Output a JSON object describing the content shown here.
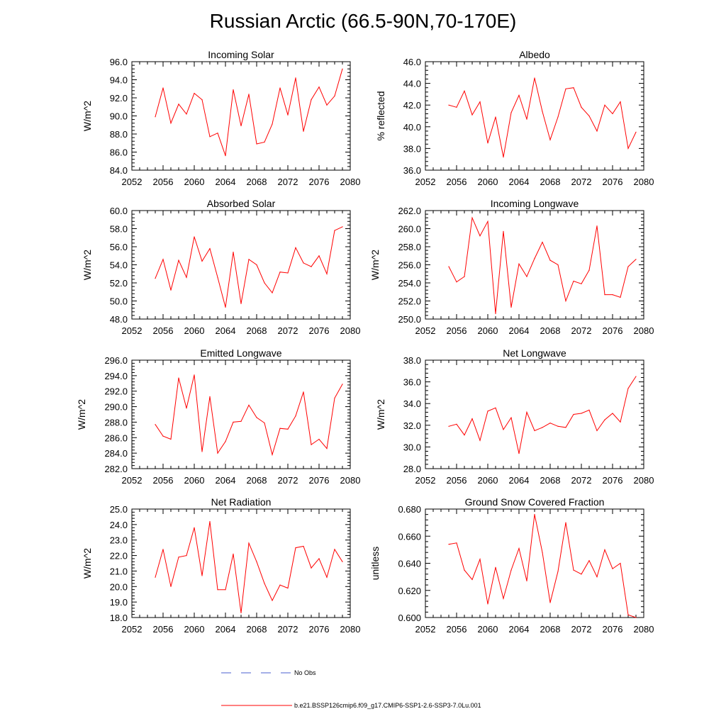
{
  "title": "Russian Arctic (66.5-90N,70-170E)",
  "legend": {
    "obs_label": "No Obs",
    "obs_color": "#4a5fcf",
    "model_label": "b.e21.BSSP126cmip6.f09_g17.CMIP6-SSP1-2.6-SSP3-7.0Lu.001",
    "model_color": "#ff0000"
  },
  "chart_data": [
    {
      "type": "line",
      "title": "Incoming Solar",
      "ylabel": "W/m^2",
      "xlim": [
        2052,
        2080
      ],
      "xticks": [
        "2052",
        "2056",
        "2060",
        "2064",
        "2068",
        "2072",
        "2076",
        "2080"
      ],
      "ylim": [
        84.0,
        96.0
      ],
      "yticks": [
        "84.0",
        "86.0",
        "88.0",
        "90.0",
        "92.0",
        "94.0",
        "96.0"
      ],
      "x": [
        2055,
        2056,
        2057,
        2058,
        2059,
        2060,
        2061,
        2062,
        2063,
        2064,
        2065,
        2066,
        2067,
        2068,
        2069,
        2070,
        2071,
        2072,
        2073,
        2074,
        2075,
        2076,
        2077,
        2078,
        2079
      ],
      "series": [
        {
          "values": [
            89.9,
            93.1,
            89.2,
            91.3,
            90.2,
            92.5,
            91.8,
            87.7,
            88.1,
            85.6,
            92.9,
            88.9,
            92.4,
            86.9,
            87.1,
            89.1,
            93.1,
            90.1,
            94.2,
            88.3,
            91.8,
            93.2,
            91.2,
            92.2,
            95.2
          ]
        }
      ]
    },
    {
      "type": "line",
      "title": "Albedo",
      "ylabel": "% reflected",
      "xlim": [
        2052,
        2080
      ],
      "xticks": [
        "2052",
        "2056",
        "2060",
        "2064",
        "2068",
        "2072",
        "2076",
        "2080"
      ],
      "ylim": [
        36.0,
        46.0
      ],
      "yticks": [
        "36.0",
        "38.0",
        "40.0",
        "42.0",
        "44.0",
        "46.0"
      ],
      "x": [
        2055,
        2056,
        2057,
        2058,
        2059,
        2060,
        2061,
        2062,
        2063,
        2064,
        2065,
        2066,
        2067,
        2068,
        2069,
        2070,
        2071,
        2072,
        2073,
        2074,
        2075,
        2076,
        2077,
        2078,
        2079
      ],
      "series": [
        {
          "values": [
            42.0,
            41.8,
            43.3,
            41.1,
            42.3,
            38.5,
            40.9,
            37.2,
            41.3,
            42.9,
            40.7,
            44.5,
            41.4,
            38.8,
            40.9,
            43.5,
            43.6,
            41.8,
            41.0,
            39.6,
            42.0,
            41.2,
            42.3,
            38.0,
            39.5
          ]
        }
      ]
    },
    {
      "type": "line",
      "title": "Absorbed Solar",
      "ylabel": "W/m^2",
      "xlim": [
        2052,
        2080
      ],
      "xticks": [
        "2052",
        "2056",
        "2060",
        "2064",
        "2068",
        "2072",
        "2076",
        "2080"
      ],
      "ylim": [
        48.0,
        60.0
      ],
      "yticks": [
        "48.0",
        "50.0",
        "52.0",
        "54.0",
        "56.0",
        "58.0",
        "60.0"
      ],
      "x": [
        2055,
        2056,
        2057,
        2058,
        2059,
        2060,
        2061,
        2062,
        2063,
        2064,
        2065,
        2066,
        2067,
        2068,
        2069,
        2070,
        2071,
        2072,
        2073,
        2074,
        2075,
        2076,
        2077,
        2078,
        2079
      ],
      "series": [
        {
          "values": [
            52.5,
            54.6,
            51.2,
            54.5,
            52.6,
            57.1,
            54.4,
            55.8,
            52.6,
            49.3,
            55.4,
            49.7,
            54.6,
            54.0,
            52.0,
            50.9,
            53.2,
            53.1,
            55.9,
            54.2,
            53.8,
            55.0,
            53.0,
            57.8,
            58.2
          ]
        }
      ]
    },
    {
      "type": "line",
      "title": "Incoming Longwave",
      "ylabel": "W/m^2",
      "xlim": [
        2052,
        2080
      ],
      "xticks": [
        "2052",
        "2056",
        "2060",
        "2064",
        "2068",
        "2072",
        "2076",
        "2080"
      ],
      "ylim": [
        250.0,
        262.0
      ],
      "yticks": [
        "250.0",
        "252.0",
        "254.0",
        "256.0",
        "258.0",
        "260.0",
        "262.0"
      ],
      "x": [
        2055,
        2056,
        2057,
        2058,
        2059,
        2060,
        2061,
        2062,
        2063,
        2064,
        2065,
        2066,
        2067,
        2068,
        2069,
        2070,
        2071,
        2072,
        2073,
        2074,
        2075,
        2076,
        2077,
        2078,
        2079
      ],
      "series": [
        {
          "values": [
            255.8,
            254.1,
            254.7,
            261.2,
            259.2,
            260.8,
            250.6,
            259.7,
            251.3,
            256.1,
            254.7,
            256.7,
            258.5,
            256.5,
            256.0,
            252.0,
            254.2,
            253.9,
            255.4,
            260.3,
            252.7,
            252.7,
            252.4,
            255.8,
            256.6
          ]
        }
      ]
    },
    {
      "type": "line",
      "title": "Emitted Longwave",
      "ylabel": "W/m^2",
      "xlim": [
        2052,
        2080
      ],
      "xticks": [
        "2052",
        "2056",
        "2060",
        "2064",
        "2068",
        "2072",
        "2076",
        "2080"
      ],
      "ylim": [
        282.0,
        296.0
      ],
      "yticks": [
        "282.0",
        "284.0",
        "286.0",
        "288.0",
        "290.0",
        "292.0",
        "294.0",
        "296.0"
      ],
      "x": [
        2055,
        2056,
        2057,
        2058,
        2059,
        2060,
        2061,
        2062,
        2063,
        2064,
        2065,
        2066,
        2067,
        2068,
        2069,
        2070,
        2071,
        2072,
        2073,
        2074,
        2075,
        2076,
        2077,
        2078,
        2079
      ],
      "series": [
        {
          "values": [
            287.7,
            286.2,
            285.8,
            293.7,
            289.8,
            294.1,
            284.2,
            291.3,
            284.0,
            285.5,
            288.0,
            288.1,
            290.2,
            288.6,
            287.9,
            283.8,
            287.2,
            287.1,
            288.8,
            291.9,
            285.1,
            285.8,
            284.6,
            291.1,
            292.9
          ]
        }
      ]
    },
    {
      "type": "line",
      "title": "Net Longwave",
      "ylabel": "W/m^2",
      "xlim": [
        2052,
        2080
      ],
      "xticks": [
        "2052",
        "2056",
        "2060",
        "2064",
        "2068",
        "2072",
        "2076",
        "2080"
      ],
      "ylim": [
        28.0,
        38.0
      ],
      "yticks": [
        "28.0",
        "30.0",
        "32.0",
        "34.0",
        "36.0",
        "38.0"
      ],
      "x": [
        2055,
        2056,
        2057,
        2058,
        2059,
        2060,
        2061,
        2062,
        2063,
        2064,
        2065,
        2066,
        2067,
        2068,
        2069,
        2070,
        2071,
        2072,
        2073,
        2074,
        2075,
        2076,
        2077,
        2078,
        2079
      ],
      "series": [
        {
          "values": [
            31.9,
            32.1,
            31.1,
            32.6,
            30.6,
            33.3,
            33.6,
            31.6,
            32.7,
            29.4,
            33.2,
            31.5,
            31.8,
            32.2,
            31.9,
            31.8,
            33.0,
            33.1,
            33.4,
            31.5,
            32.5,
            33.1,
            32.3,
            35.4,
            36.5
          ]
        }
      ]
    },
    {
      "type": "line",
      "title": "Net Radiation",
      "ylabel": "W/m^2",
      "xlim": [
        2052,
        2080
      ],
      "xticks": [
        "2052",
        "2056",
        "2060",
        "2064",
        "2068",
        "2072",
        "2076",
        "2080"
      ],
      "ylim": [
        18.0,
        25.0
      ],
      "yticks": [
        "18.0",
        "19.0",
        "20.0",
        "21.0",
        "22.0",
        "23.0",
        "24.0",
        "25.0"
      ],
      "x": [
        2055,
        2056,
        2057,
        2058,
        2059,
        2060,
        2061,
        2062,
        2063,
        2064,
        2065,
        2066,
        2067,
        2068,
        2069,
        2070,
        2071,
        2072,
        2073,
        2074,
        2075,
        2076,
        2077,
        2078,
        2079
      ],
      "series": [
        {
          "values": [
            20.6,
            22.4,
            20.0,
            21.9,
            22.0,
            23.8,
            20.7,
            24.2,
            19.8,
            19.8,
            22.1,
            18.3,
            22.8,
            21.6,
            20.2,
            19.1,
            20.1,
            19.9,
            22.5,
            22.6,
            21.2,
            21.8,
            20.6,
            22.4,
            21.6
          ]
        }
      ]
    },
    {
      "type": "line",
      "title": "Ground Snow Covered Fraction",
      "ylabel": "unitless",
      "xlim": [
        2052,
        2080
      ],
      "xticks": [
        "2052",
        "2056",
        "2060",
        "2064",
        "2068",
        "2072",
        "2076",
        "2080"
      ],
      "ylim": [
        0.6,
        0.68
      ],
      "yticks": [
        "0.600",
        "0.620",
        "0.640",
        "0.660",
        "0.680"
      ],
      "x": [
        2055,
        2056,
        2057,
        2058,
        2059,
        2060,
        2061,
        2062,
        2063,
        2064,
        2065,
        2066,
        2067,
        2068,
        2069,
        2070,
        2071,
        2072,
        2073,
        2074,
        2075,
        2076,
        2077,
        2078,
        2079
      ],
      "series": [
        {
          "values": [
            0.654,
            0.655,
            0.635,
            0.628,
            0.643,
            0.61,
            0.637,
            0.614,
            0.635,
            0.651,
            0.627,
            0.676,
            0.648,
            0.611,
            0.634,
            0.67,
            0.635,
            0.632,
            0.642,
            0.63,
            0.65,
            0.636,
            0.64,
            0.602,
            0.6
          ]
        }
      ]
    }
  ]
}
